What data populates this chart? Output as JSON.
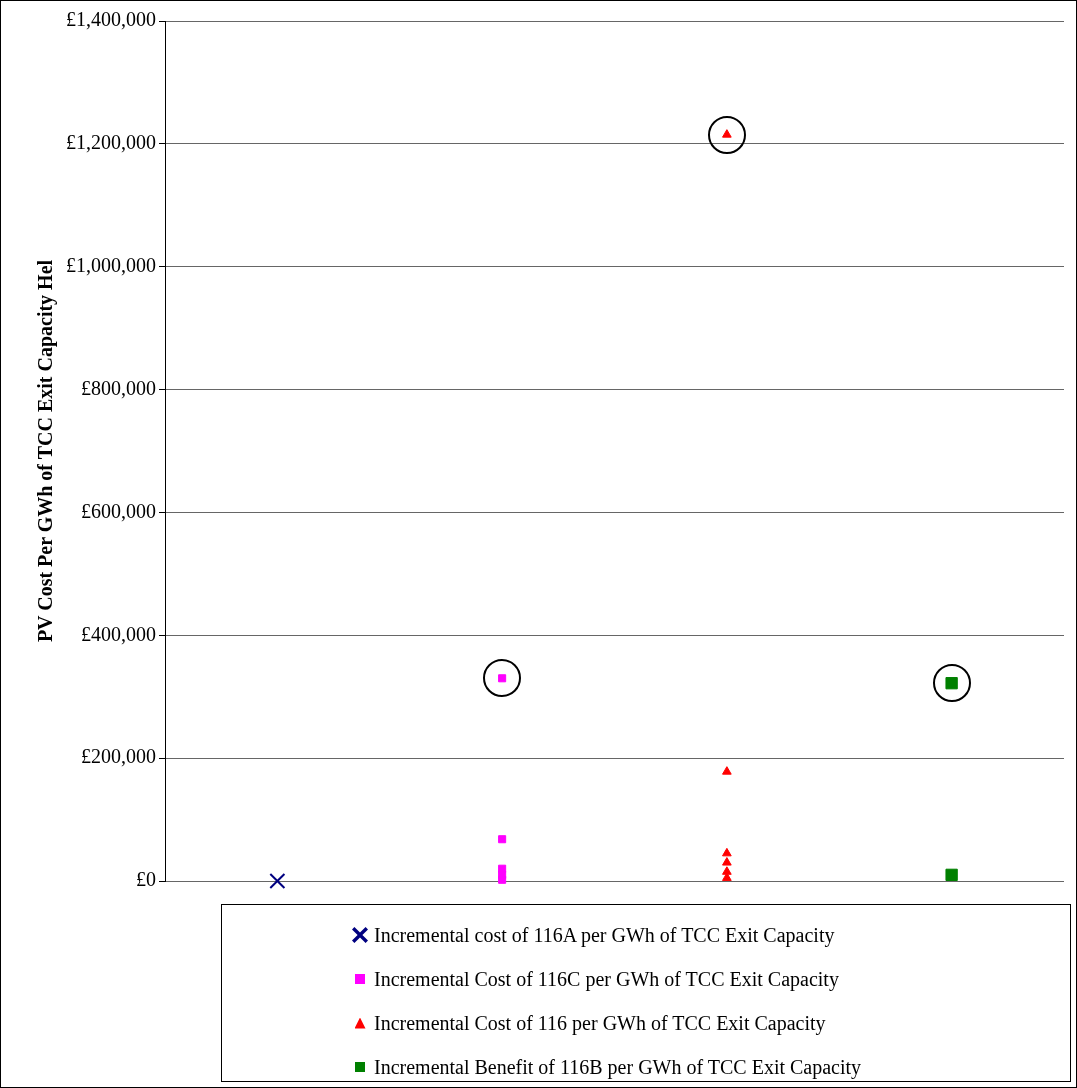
{
  "chart_data": {
    "type": "scatter",
    "ylabel": "PV Cost Per GWh of TCC Exit Capacity Hel",
    "categories": [
      null,
      null,
      null,
      null
    ],
    "ylim": [
      0,
      1400000
    ],
    "yticks": [
      {
        "value": 0,
        "label": "£0"
      },
      {
        "value": 200000,
        "label": "£200,000"
      },
      {
        "value": 400000,
        "label": "£400,000"
      },
      {
        "value": 600000,
        "label": "£600,000"
      },
      {
        "value": 800000,
        "label": "£800,000"
      },
      {
        "value": 1000000,
        "label": "£1,000,000"
      },
      {
        "value": 1200000,
        "label": "£1,200,000"
      },
      {
        "value": 1400000,
        "label": "£1,400,000"
      }
    ],
    "tick_labels": "y",
    "grid": "y",
    "legend": "bottom",
    "series": [
      {
        "name": "Incremental cost of 116A per GWh of TCC Exit Capacity",
        "color": "#000080",
        "marker": "cross",
        "values": [
          0,
          null,
          null,
          null
        ]
      },
      {
        "name": "Incremental Cost of 116C per GWh of TCC Exit Capacity",
        "color": "#ff00ff",
        "marker": "square",
        "values": [
          null,
          330000,
          null,
          null
        ]
      },
      {
        "color": "#ff00ff",
        "marker": "square",
        "values": [
          null,
          68000,
          null,
          null
        ]
      },
      {
        "color": "#ff00ff",
        "marker": "square",
        "values": [
          null,
          20000,
          null,
          null
        ]
      },
      {
        "color": "#ff00ff",
        "marker": "square",
        "values": [
          null,
          10000,
          null,
          null
        ]
      },
      {
        "color": "#ff00ff",
        "marker": "square",
        "values": [
          null,
          2000,
          null,
          null
        ]
      },
      {
        "name": "Incremental Cost of 116 per GWh of TCC Exit Capacity",
        "color": "#ff0000",
        "marker": "triangle",
        "values": [
          null,
          null,
          1215000,
          null
        ]
      },
      {
        "color": "#ff0000",
        "marker": "triangle",
        "values": [
          null,
          null,
          178000,
          null
        ]
      },
      {
        "color": "#ff0000",
        "marker": "triangle",
        "values": [
          null,
          null,
          45000,
          null
        ]
      },
      {
        "color": "#ff0000",
        "marker": "triangle",
        "values": [
          null,
          null,
          30000,
          null
        ]
      },
      {
        "color": "#ff0000",
        "marker": "triangle",
        "values": [
          null,
          null,
          15000,
          null
        ]
      },
      {
        "color": "#ff0000",
        "marker": "triangle",
        "values": [
          null,
          null,
          5000,
          null
        ]
      },
      {
        "name": "Incremental Benefit of 116B per GWh of TCC Exit Capacity",
        "color": "#008000",
        "marker": "square",
        "values": [
          null,
          null,
          null,
          322000
        ]
      },
      {
        "color": "#008000",
        "marker": "square",
        "values": [
          null,
          null,
          null,
          10000
        ]
      }
    ]
  }
}
